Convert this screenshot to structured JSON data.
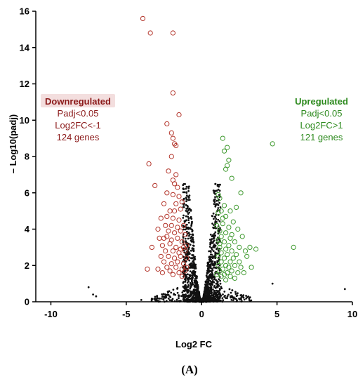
{
  "chart_data": {
    "type": "scatter",
    "title": "",
    "xlabel": "Log2 FC",
    "ylabel": "– Log10(padj)",
    "xlim": [
      -11,
      10
    ],
    "ylim": [
      0,
      16
    ],
    "xticks": [
      -10,
      -5,
      0,
      5,
      10
    ],
    "yticks": [
      0,
      2,
      4,
      6,
      8,
      10,
      12,
      14,
      16
    ],
    "grid": false,
    "panel_label": "(A)",
    "annotations": {
      "down": {
        "title": "Downregulated",
        "lines": [
          "Padj<0.05",
          "Log2FC<-1",
          "124 genes"
        ],
        "color": "#8b1a1a",
        "highlight": "#f3dede"
      },
      "up": {
        "title": "Upregulated",
        "lines": [
          "Padj<0.05",
          "Log2FC>1",
          "121 genes"
        ],
        "color": "#2d8a1e"
      }
    },
    "series": [
      {
        "label": "downregulated",
        "color": "#b3342a",
        "marker": "open-circle",
        "points": [
          [
            -3.9,
            15.6
          ],
          [
            -3.4,
            14.8
          ],
          [
            -1.9,
            14.8
          ],
          [
            -1.9,
            11.5
          ],
          [
            -1.5,
            10.3
          ],
          [
            -2.3,
            9.8
          ],
          [
            -2.0,
            9.3
          ],
          [
            -1.9,
            9.0
          ],
          [
            -1.8,
            8.7
          ],
          [
            -1.7,
            8.6
          ],
          [
            -2.0,
            8.0
          ],
          [
            -3.5,
            7.6
          ],
          [
            -2.2,
            7.2
          ],
          [
            -1.7,
            7.0
          ],
          [
            -1.9,
            6.7
          ],
          [
            -3.1,
            6.4
          ],
          [
            -1.8,
            6.5
          ],
          [
            -1.6,
            6.3
          ],
          [
            -2.3,
            6.0
          ],
          [
            -1.9,
            5.9
          ],
          [
            -1.5,
            5.8
          ],
          [
            -2.5,
            5.4
          ],
          [
            -1.7,
            5.4
          ],
          [
            -1.3,
            5.5
          ],
          [
            -2.1,
            5.0
          ],
          [
            -1.8,
            5.0
          ],
          [
            -1.4,
            5.1
          ],
          [
            -2.7,
            4.6
          ],
          [
            -2.3,
            4.7
          ],
          [
            -1.9,
            4.6
          ],
          [
            -1.5,
            4.5
          ],
          [
            -2.4,
            4.2
          ],
          [
            -2.0,
            4.2
          ],
          [
            -1.6,
            4.1
          ],
          [
            -1.2,
            4.2
          ],
          [
            -2.9,
            4.0
          ],
          [
            -2.2,
            3.9
          ],
          [
            -1.8,
            3.8
          ],
          [
            -1.4,
            3.9
          ],
          [
            -1.1,
            3.7
          ],
          [
            -2.8,
            3.5
          ],
          [
            -2.5,
            3.5
          ],
          [
            -2.0,
            3.4
          ],
          [
            -1.6,
            3.5
          ],
          [
            -1.3,
            3.3
          ],
          [
            -2.6,
            3.1
          ],
          [
            -2.1,
            3.2
          ],
          [
            -1.7,
            3.0
          ],
          [
            -1.2,
            3.0
          ],
          [
            -3.3,
            3.0
          ],
          [
            -2.4,
            2.8
          ],
          [
            -1.9,
            2.8
          ],
          [
            -1.5,
            2.7
          ],
          [
            -1.1,
            2.8
          ],
          [
            -2.7,
            2.5
          ],
          [
            -2.2,
            2.5
          ],
          [
            -1.8,
            2.4
          ],
          [
            -1.4,
            2.5
          ],
          [
            -1.0,
            2.4
          ],
          [
            -2.5,
            2.2
          ],
          [
            -2.0,
            2.1
          ],
          [
            -1.6,
            2.2
          ],
          [
            -1.2,
            2.1
          ],
          [
            -2.3,
            1.9
          ],
          [
            -1.7,
            1.9
          ],
          [
            -1.3,
            1.8
          ],
          [
            -3.6,
            1.8
          ],
          [
            -2.9,
            1.8
          ],
          [
            -2.1,
            1.7
          ],
          [
            -1.5,
            1.6
          ],
          [
            -1.1,
            1.7
          ],
          [
            -1.9,
            1.5
          ],
          [
            -1.3,
            1.4
          ],
          [
            -2.6,
            1.6
          ],
          [
            -1.0,
            1.9
          ],
          [
            -1.4,
            2.9
          ],
          [
            -1.0,
            3.1
          ],
          [
            -2.3,
            3.6
          ]
        ]
      },
      {
        "label": "upregulated",
        "color": "#3f9a2f",
        "marker": "open-circle",
        "points": [
          [
            4.7,
            8.7
          ],
          [
            1.4,
            9.0
          ],
          [
            1.7,
            8.5
          ],
          [
            1.5,
            8.3
          ],
          [
            1.8,
            7.8
          ],
          [
            1.7,
            7.5
          ],
          [
            1.6,
            7.3
          ],
          [
            2.0,
            6.8
          ],
          [
            1.1,
            5.9
          ],
          [
            1.2,
            5.7
          ],
          [
            2.6,
            6.0
          ],
          [
            1.5,
            5.3
          ],
          [
            1.9,
            5.0
          ],
          [
            1.3,
            5.0
          ],
          [
            1.1,
            4.9
          ],
          [
            1.6,
            4.7
          ],
          [
            2.1,
            4.4
          ],
          [
            1.4,
            4.3
          ],
          [
            1.0,
            4.2
          ],
          [
            1.8,
            4.1
          ],
          [
            2.4,
            4.0
          ],
          [
            1.2,
            3.9
          ],
          [
            1.6,
            3.8
          ],
          [
            2.0,
            3.7
          ],
          [
            1.3,
            3.6
          ],
          [
            1.9,
            3.5
          ],
          [
            2.7,
            3.6
          ],
          [
            1.1,
            3.4
          ],
          [
            1.5,
            3.3
          ],
          [
            2.2,
            3.3
          ],
          [
            1.8,
            3.1
          ],
          [
            1.2,
            3.0
          ],
          [
            2.5,
            3.0
          ],
          [
            3.2,
            3.0
          ],
          [
            3.6,
            2.9
          ],
          [
            1.6,
            2.9
          ],
          [
            2.0,
            2.8
          ],
          [
            2.9,
            2.8
          ],
          [
            1.3,
            2.7
          ],
          [
            1.7,
            2.6
          ],
          [
            2.3,
            2.6
          ],
          [
            1.1,
            2.5
          ],
          [
            1.5,
            2.4
          ],
          [
            2.1,
            2.4
          ],
          [
            3.0,
            2.5
          ],
          [
            1.9,
            2.2
          ],
          [
            1.3,
            2.2
          ],
          [
            2.5,
            2.2
          ],
          [
            1.6,
            2.0
          ],
          [
            2.2,
            2.0
          ],
          [
            1.1,
            2.0
          ],
          [
            1.8,
            1.9
          ],
          [
            2.6,
            1.9
          ],
          [
            1.4,
            1.8
          ],
          [
            2.0,
            1.7
          ],
          [
            1.2,
            1.7
          ],
          [
            1.7,
            1.6
          ],
          [
            2.4,
            1.6
          ],
          [
            1.5,
            1.5
          ],
          [
            2.8,
            1.6
          ],
          [
            1.3,
            1.4
          ],
          [
            1.9,
            1.4
          ],
          [
            1.0,
            1.5
          ],
          [
            2.2,
            1.3
          ],
          [
            1.6,
            1.2
          ],
          [
            6.1,
            3.0
          ],
          [
            3.3,
            1.9
          ],
          [
            1.4,
            4.6
          ],
          [
            2.3,
            5.2
          ],
          [
            1.2,
            3.2
          ]
        ]
      },
      {
        "label": "not-significant",
        "color": "#111111",
        "marker": "dot",
        "outliers": [
          [
            -7.5,
            0.8
          ],
          [
            -7.2,
            0.4
          ],
          [
            -7.0,
            0.3
          ],
          [
            -4.0,
            0.1
          ],
          [
            4.7,
            1.0
          ],
          [
            9.5,
            0.7
          ]
        ]
      }
    ]
  }
}
